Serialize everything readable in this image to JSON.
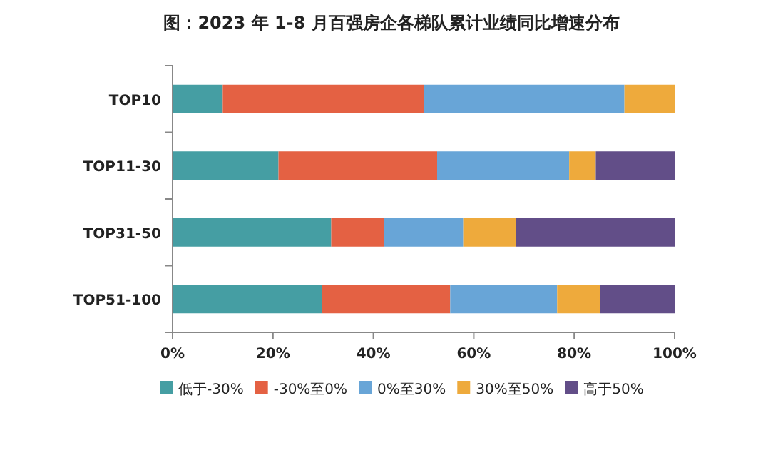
{
  "chart_data": {
    "type": "bar",
    "orientation": "horizontal",
    "stacked": true,
    "title": "图：2023 年 1-8 月百强房企各梯队累计业绩同比增速分布",
    "categories": [
      "TOP10",
      "TOP11-30",
      "TOP31-50",
      "TOP51-100"
    ],
    "series": [
      {
        "name": "低于-30%",
        "color": "#459ea3",
        "values": [
          10,
          21.1,
          31.6,
          29.8
        ]
      },
      {
        "name": "-30%至0%",
        "color": "#e46143",
        "values": [
          40,
          31.6,
          10.5,
          25.5
        ]
      },
      {
        "name": "0%至30%",
        "color": "#68a5d7",
        "values": [
          40,
          26.3,
          15.8,
          21.3
        ]
      },
      {
        "name": "30%至50%",
        "color": "#eeaa3c",
        "values": [
          10,
          5.3,
          10.5,
          8.5
        ]
      },
      {
        "name": "高于50%",
        "color": "#624e88",
        "values": [
          0,
          15.8,
          31.6,
          14.9
        ]
      }
    ],
    "xlim": [
      0,
      100
    ],
    "xticks": [
      {
        "value": 0,
        "label": "0%"
      },
      {
        "value": 20,
        "label": "20%"
      },
      {
        "value": 40,
        "label": "40%"
      },
      {
        "value": 60,
        "label": "60%"
      },
      {
        "value": 80,
        "label": "80%"
      },
      {
        "value": 100,
        "label": "100%"
      }
    ],
    "grid": false,
    "legend": "bottom"
  }
}
